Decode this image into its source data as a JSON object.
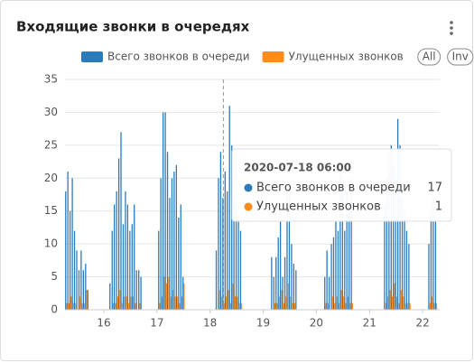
{
  "chart_data": {
    "type": "bar",
    "title": "Входящие звонки в очередях",
    "x": [
      15.292,
      15.333,
      15.375,
      15.417,
      15.458,
      15.5,
      15.542,
      15.583,
      15.625,
      15.667,
      15.708,
      16.125,
      16.167,
      16.208,
      16.25,
      16.292,
      16.333,
      16.375,
      16.417,
      16.458,
      16.5,
      16.542,
      16.583,
      16.625,
      16.667,
      16.708,
      17.042,
      17.083,
      17.125,
      17.167,
      17.208,
      17.25,
      17.292,
      17.333,
      17.375,
      17.417,
      17.458,
      17.5,
      18.125,
      18.167,
      18.208,
      18.25,
      18.292,
      18.333,
      18.375,
      18.417,
      18.458,
      18.5,
      18.542,
      18.583,
      19.167,
      19.208,
      19.25,
      19.292,
      19.333,
      19.375,
      19.417,
      19.458,
      19.5,
      19.542,
      19.583,
      19.625,
      20.167,
      20.208,
      20.25,
      20.292,
      20.333,
      20.375,
      20.417,
      20.458,
      20.5,
      20.542,
      20.583,
      20.625,
      20.667,
      21.292,
      21.333,
      21.375,
      21.417,
      21.458,
      21.5,
      21.542,
      21.583,
      21.625,
      21.667,
      21.708,
      21.75,
      22.125,
      22.167,
      22.208,
      22.25
    ],
    "series": [
      {
        "name": "Всего звонков в очереди",
        "color": "#2b7bba",
        "values": [
          18,
          21,
          15,
          20,
          12,
          9,
          6,
          9,
          6,
          7,
          3,
          4,
          12,
          16,
          18,
          23,
          27,
          13,
          18,
          16,
          12,
          13,
          16,
          6,
          6,
          5,
          12,
          20,
          30,
          30,
          24,
          17,
          20,
          21,
          22,
          14,
          16,
          5,
          9,
          20,
          24,
          17,
          21,
          18,
          31,
          25,
          17,
          16,
          14,
          12,
          8,
          5,
          8,
          11,
          15,
          5,
          8,
          18,
          19,
          10,
          7,
          6,
          5,
          9,
          5,
          10,
          11,
          15,
          12,
          21,
          20,
          12,
          18,
          16,
          20,
          16,
          20,
          24,
          25,
          22,
          18,
          29,
          25,
          17,
          15,
          12,
          10,
          10,
          16,
          17,
          14
        ]
      },
      {
        "name": "Улущенных звонков",
        "color": "#ff8c1a",
        "values": [
          1,
          1,
          2,
          1,
          1,
          0,
          2,
          1,
          1,
          3,
          0,
          0,
          1,
          1,
          2,
          3,
          1,
          2,
          2,
          1,
          2,
          2,
          1,
          0,
          1,
          0,
          1,
          2,
          5,
          4,
          5,
          2,
          3,
          2,
          2,
          1,
          2,
          4,
          0,
          3,
          2,
          1,
          2,
          3,
          1,
          4,
          2,
          2,
          1,
          1,
          0,
          1,
          1,
          2,
          3,
          1,
          2,
          4,
          2,
          1,
          1,
          0,
          1,
          1,
          0,
          2,
          1,
          2,
          1,
          3,
          2,
          1,
          2,
          1,
          1,
          1,
          2,
          3,
          2,
          4,
          2,
          1,
          3,
          2,
          1,
          1,
          1,
          1,
          2,
          1,
          1
        ]
      }
    ],
    "xlim": [
      15.27,
      22.32
    ],
    "xticks": [
      16,
      17,
      18,
      19,
      20,
      21,
      22
    ],
    "ylim": [
      0,
      35
    ],
    "yticks": [
      0,
      5,
      10,
      15,
      20,
      25,
      30,
      35
    ],
    "grid": true,
    "legend_buttons": [
      "All",
      "Inv"
    ],
    "tooltip": {
      "x": 18.25,
      "title": "2020-07-18 06:00",
      "rows": [
        {
          "name": "Всего звонков в очереди",
          "value": 17,
          "color": "#2b7bba"
        },
        {
          "name": "Улущенных звонков",
          "value": 1,
          "color": "#ff8c1a"
        }
      ]
    }
  }
}
